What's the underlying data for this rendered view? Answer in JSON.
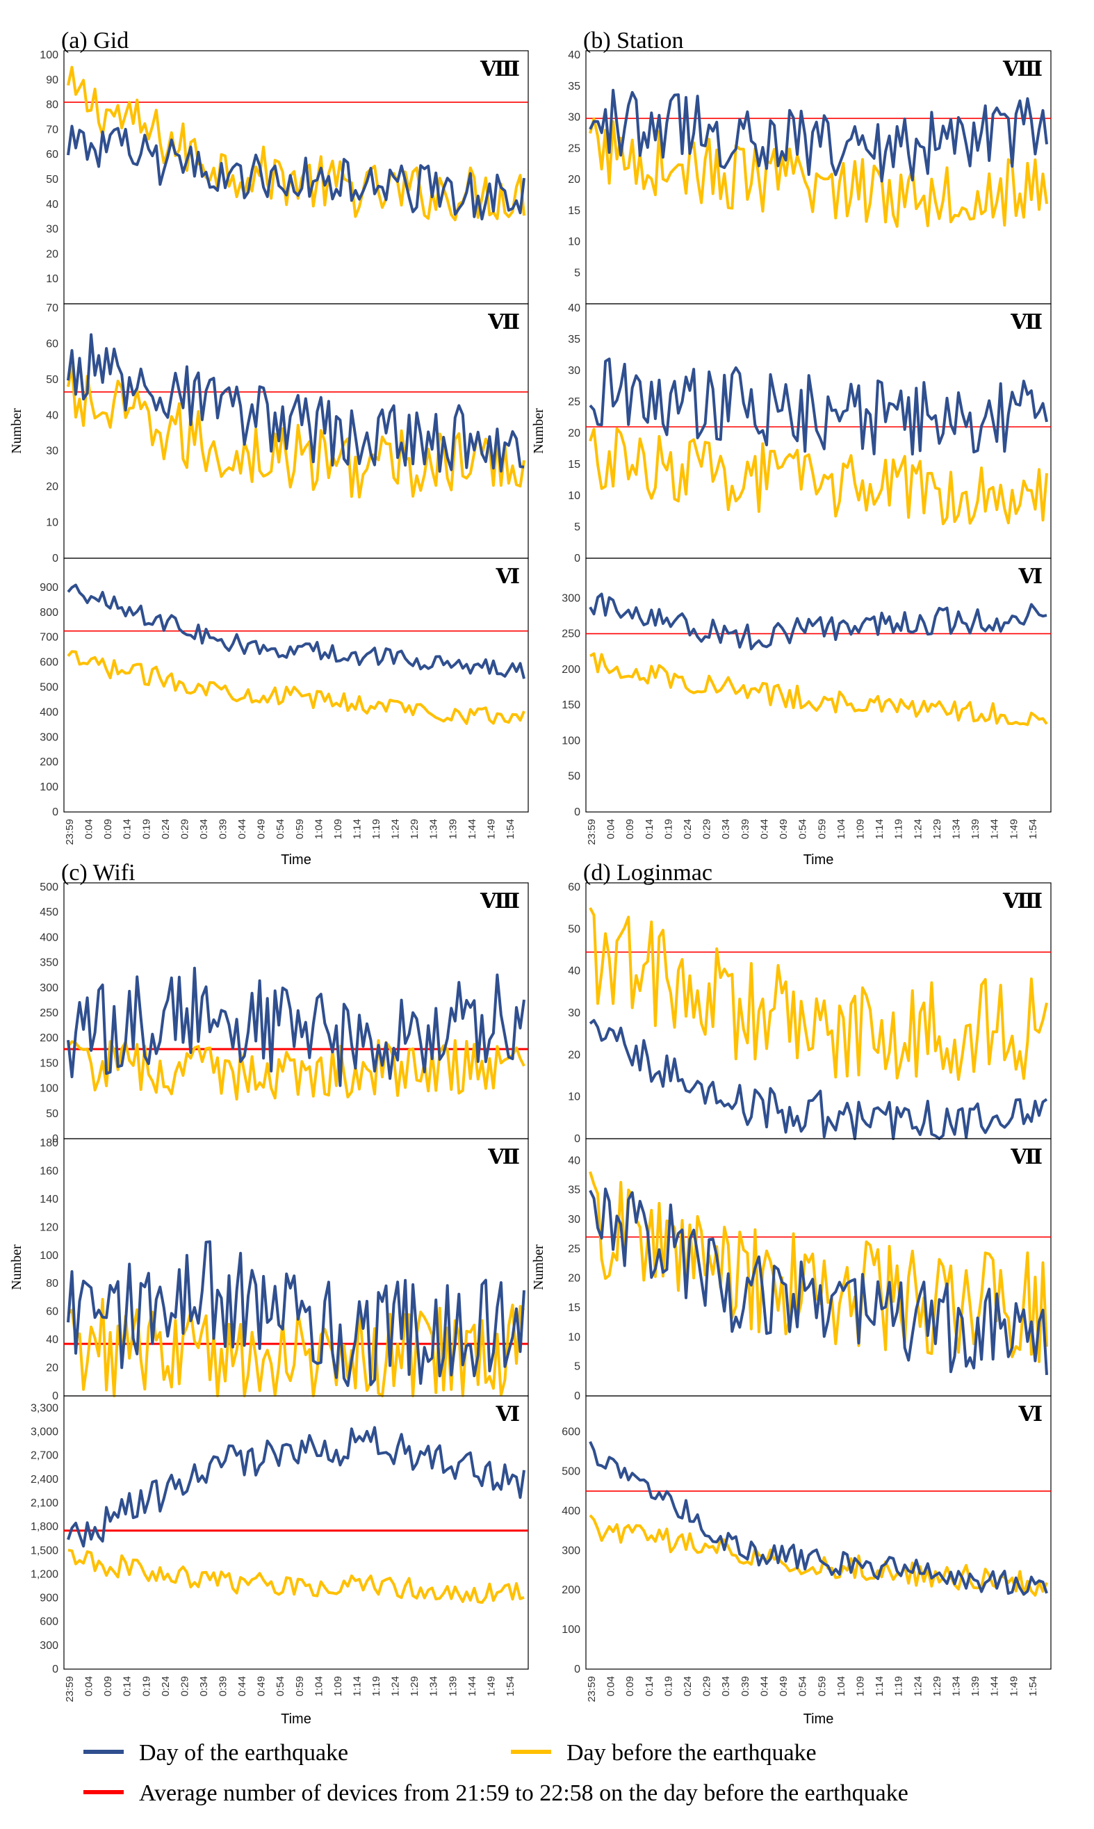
{
  "colors": {
    "day_of": "#2f4f8f",
    "day_before": "#ffc000",
    "average": "#ff0000",
    "frame": "#000000",
    "axis_text": "#333333"
  },
  "legend": {
    "day_of": "Day of the earthquake",
    "day_before": "Day before the earthquake",
    "average": "Average number of devices from  21:59 to 22:58 on the day before the earthquake"
  },
  "panels": [
    {
      "title": "(a) Gid",
      "ylabel": "Number",
      "xlabel": "Time"
    },
    {
      "title": "(b) Station",
      "ylabel": "Number",
      "xlabel": "Time"
    },
    {
      "title": "(c) Wifi",
      "ylabel": "Number",
      "xlabel": "Time"
    },
    {
      "title": "(d) Loginmac",
      "ylabel": "Number",
      "xlabel": "Time"
    }
  ],
  "chart_data": [
    {
      "type": "line",
      "panel": 0,
      "level": "Ⅷ",
      "ylim": [
        0,
        100
      ],
      "yticks": [
        "",
        "10",
        "20",
        "30",
        "40",
        "50",
        "60",
        "70",
        "80",
        "90",
        "100"
      ],
      "average": 81,
      "day_base": [
        66,
        52,
        48,
        42
      ],
      "day_noise": 6,
      "before_base": [
        85,
        55,
        45,
        44
      ],
      "before_noise": 7
    },
    {
      "type": "line",
      "panel": 0,
      "level": "Ⅶ",
      "ylim": [
        0,
        70
      ],
      "yticks": [
        "0",
        "10",
        "20",
        "30",
        "40",
        "50",
        "60",
        "70"
      ],
      "average": 46.5,
      "day_base": [
        55,
        42,
        33,
        34
      ],
      "day_noise": 6,
      "before_base": [
        45,
        30,
        26,
        27
      ],
      "before_noise": 6
    },
    {
      "type": "line",
      "panel": 0,
      "level": "Ⅵ",
      "ylim": [
        0,
        1000
      ],
      "yticks": [
        "0",
        "100",
        "200",
        "300",
        "400",
        "500",
        "600",
        "700",
        "800",
        "900"
      ],
      "average": 725,
      "day_base": [
        900,
        680,
        620,
        560
      ],
      "day_noise": 25,
      "before_base": [
        610,
        490,
        430,
        370
      ],
      "before_noise": 25
    },
    {
      "type": "line",
      "panel": 1,
      "level": "Ⅷ",
      "ylim": [
        0,
        40
      ],
      "yticks": [
        "",
        "5",
        "10",
        "15",
        "20",
        "25",
        "30",
        "35",
        "40"
      ],
      "average": 29.8,
      "day_base": [
        30,
        27,
        25,
        28
      ],
      "day_noise": 3.5,
      "before_base": [
        25,
        20,
        18,
        18
      ],
      "before_noise": 3.5
    },
    {
      "type": "line",
      "panel": 1,
      "level": "Ⅶ",
      "ylim": [
        0,
        40
      ],
      "yticks": [
        "0",
        "5",
        "10",
        "15",
        "20",
        "25",
        "30",
        "35",
        "40"
      ],
      "average": 21,
      "day_base": [
        26,
        24,
        22,
        23
      ],
      "day_noise": 4,
      "before_base": [
        16,
        13,
        11,
        11
      ],
      "before_noise": 3.5
    },
    {
      "type": "line",
      "panel": 1,
      "level": "Ⅵ",
      "ylim": [
        0,
        350
      ],
      "yticks": [
        "0",
        "50",
        "100",
        "150",
        "200",
        "250",
        "300"
      ],
      "average": 250,
      "day_base": [
        290,
        245,
        265,
        275
      ],
      "day_noise": 12,
      "before_base": [
        210,
        170,
        145,
        135
      ],
      "before_noise": 10
    },
    {
      "type": "line",
      "panel": 2,
      "level": "Ⅷ",
      "ylim": [
        0,
        500
      ],
      "yticks": [
        "0",
        "50",
        "100",
        "150",
        "200",
        "250",
        "300",
        "350",
        "400",
        "450",
        "500"
      ],
      "average": 178,
      "day_base": [
        200,
        260,
        170,
        250
      ],
      "day_noise": 60,
      "before_base": [
        150,
        130,
        140,
        140
      ],
      "before_noise": 35
    },
    {
      "type": "line",
      "panel": 2,
      "level": "Ⅶ",
      "ylim": [
        0,
        180
      ],
      "yticks": [
        "0",
        "20",
        "40",
        "60",
        "80",
        "100",
        "120",
        "140",
        "160",
        "180"
      ],
      "average": 37,
      "day_base": [
        50,
        75,
        40,
        55
      ],
      "day_noise": 25,
      "before_base": [
        35,
        30,
        32,
        30
      ],
      "before_noise": 22
    },
    {
      "type": "line",
      "panel": 2,
      "level": "Ⅵ",
      "ylim": [
        0,
        3400
      ],
      "yticks": [
        "0",
        "300",
        "600",
        "900",
        "1,200",
        "1,500",
        "1,800",
        "2,100",
        "2,400",
        "2,700",
        "3,000",
        "3,300"
      ],
      "average": 1750,
      "day_base": [
        1600,
        2600,
        2850,
        2350
      ],
      "day_noise": 140,
      "before_base": [
        1400,
        1100,
        1050,
        950
      ],
      "before_noise": 90
    },
    {
      "type": "line",
      "panel": 3,
      "level": "Ⅷ",
      "ylim": [
        0,
        60
      ],
      "yticks": [
        "0",
        "10",
        "20",
        "30",
        "40",
        "50",
        "60"
      ],
      "average": 44.5,
      "day_base": [
        26,
        8,
        4,
        4
      ],
      "day_noise": 3.5,
      "before_base": [
        45,
        30,
        25,
        26
      ],
      "before_noise": 8
    },
    {
      "type": "line",
      "panel": 3,
      "level": "Ⅶ",
      "ylim": [
        0,
        43
      ],
      "yticks": [
        "0",
        "5",
        "10",
        "15",
        "20",
        "25",
        "30",
        "35",
        "40"
      ],
      "average": 27,
      "day_base": [
        32,
        18,
        12,
        10
      ],
      "day_noise": 5,
      "before_base": [
        30,
        20,
        17,
        15
      ],
      "before_noise": 6
    },
    {
      "type": "line",
      "panel": 3,
      "level": "Ⅵ",
      "ylim": [
        0,
        680
      ],
      "yticks": [
        "0",
        "100",
        "200",
        "300",
        "400",
        "500",
        "600"
      ],
      "average": 450,
      "day_base": [
        560,
        300,
        250,
        210
      ],
      "day_noise": 20,
      "before_base": [
        360,
        290,
        245,
        215
      ],
      "before_noise": 20
    }
  ],
  "x_ticks": [
    "23:59",
    "0:04",
    "0:09",
    "0:14",
    "0:19",
    "0:24",
    "0:29",
    "0:34",
    "0:39",
    "0:44",
    "0:49",
    "0:54",
    "0:59",
    "1:04",
    "1:09",
    "1:14",
    "1:19",
    "1:24",
    "1:29",
    "1:34",
    "1:39",
    "1:44",
    "1:49",
    "1:54"
  ]
}
